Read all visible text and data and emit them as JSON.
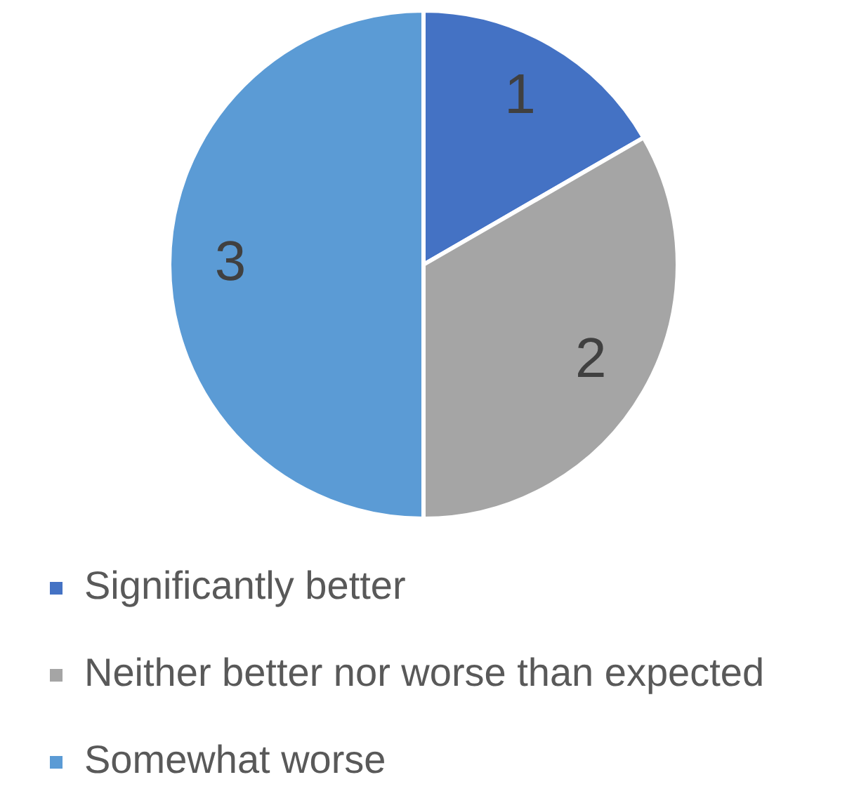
{
  "chart_data": {
    "type": "pie",
    "categories": [
      "Significantly better",
      "Neither better nor worse than expected",
      "Somewhat worse"
    ],
    "values": [
      1,
      2,
      3
    ],
    "colors": [
      "#4472c4",
      "#a5a5a5",
      "#5b9bd5"
    ],
    "data_labels": true,
    "legend": "bottom"
  }
}
